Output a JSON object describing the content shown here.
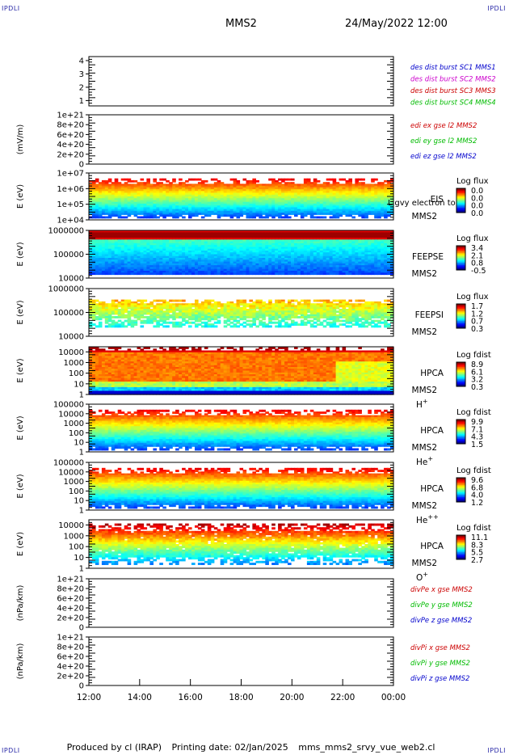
{
  "corners": {
    "top_left": "IPDLI",
    "top_right": "IPDLI",
    "bottom_left": "IPDLI",
    "bottom_right": "IPDLI"
  },
  "header": {
    "spacecraft": "MMS2",
    "datetime": "24/May/2022 12:00"
  },
  "footer": {
    "producer": "Produced by cl (IRAP)",
    "print_date": "Printing date: 02/Jan/2025",
    "script": "mms_mms2_srvy_vue_web2.cl"
  },
  "colors": {
    "mms1": "#0000cc",
    "mms2": "#cc00cc",
    "mms3": "#cc0000",
    "mms4": "#00bb00",
    "x": "#cc0000",
    "y": "#00bb00",
    "z": "#0000cc",
    "fill": "#ffffff",
    "ink": "#000000"
  },
  "chart_data": {
    "type": "stacked-timeseries",
    "time_axis": {
      "range": [
        "12:00",
        "00:00"
      ],
      "ticks": [
        "12:00",
        "14:00",
        "16:00",
        "18:00",
        "20:00",
        "22:00",
        "00:00"
      ]
    },
    "panels": [
      {
        "id": "burst",
        "type": "line",
        "ylabel": "",
        "yticks": [
          "4",
          "3",
          "2",
          "1"
        ],
        "ylim": [
          0.6,
          4.3
        ],
        "legend": [
          "des dist burst SC1 MMS1",
          "des dist burst SC2 MMS2",
          "des dist burst SC3 MMS3",
          "des dist burst SC4 MMS4"
        ],
        "legend_colors": [
          "mms1",
          "mms2",
          "mms3",
          "mms4"
        ]
      },
      {
        "id": "edi",
        "type": "line",
        "ylabel": "(mV/m)",
        "yticks": [
          "1e+21",
          "8e+20",
          "6e+20",
          "4e+20",
          "2e+20",
          "0"
        ],
        "ylim": [
          0,
          1e+21
        ],
        "zero_line": true,
        "legend": [
          "edi ex gse l2 MMS2",
          "edi ey gse l2 MMS2",
          "edi ez gse l2 MMS2"
        ],
        "legend_colors": [
          "x",
          "y",
          "z"
        ]
      },
      {
        "id": "eis",
        "type": "heatmap",
        "ylabel": "E (eV)",
        "log": true,
        "yticks": [
          "1e+07",
          "1e+06",
          "1e+05",
          "1e+04"
        ],
        "ylim": [
          10000,
          10000000
        ],
        "instrument": "EIS",
        "spacecraft": "MMS2",
        "overlay_label": "Ligvy electron to",
        "colorbar": {
          "title": "Log flux",
          "ticks": [
            "0.0",
            "0.0",
            "0.0",
            "0.0"
          ]
        }
      },
      {
        "id": "feepse",
        "type": "heatmap",
        "ylabel": "E (eV)",
        "log": true,
        "yticks": [
          "1000000",
          "100000",
          "10000"
        ],
        "ylim": [
          10000,
          1000000
        ],
        "instrument": "FEEPSE",
        "spacecraft": "MMS2",
        "colorbar": {
          "title": "Log flux",
          "ticks": [
            "3.4",
            "2.1",
            "0.8",
            "-0.5"
          ]
        }
      },
      {
        "id": "feepsi",
        "type": "heatmap",
        "ylabel": "E (eV)",
        "log": true,
        "yticks": [
          "1000000",
          "100000",
          "10000"
        ],
        "ylim": [
          10000,
          1000000
        ],
        "instrument": "FEEPSI",
        "spacecraft": "MMS2",
        "colorbar": {
          "title": "Log flux",
          "ticks": [
            "1.7",
            "1.2",
            "0.7",
            "0.3"
          ]
        }
      },
      {
        "id": "hpca_h",
        "type": "heatmap",
        "ylabel": "E (eV)",
        "log": true,
        "yticks": [
          "10000",
          "1000",
          "100",
          "10",
          "1"
        ],
        "ylim": [
          1,
          30000
        ],
        "instrument": "HPCA",
        "spacecraft": "MMS2",
        "species": "H",
        "charge": "+",
        "colorbar": {
          "title": "Log fdist",
          "ticks": [
            "8.9",
            "6.1",
            "3.2",
            "0.3"
          ]
        }
      },
      {
        "id": "hpca_he",
        "type": "heatmap",
        "ylabel": "E (eV)",
        "log": true,
        "yticks": [
          "100000",
          "10000",
          "1000",
          "100",
          "10",
          "1"
        ],
        "ylim": [
          1,
          100000
        ],
        "instrument": "HPCA",
        "spacecraft": "MMS2",
        "species": "He",
        "charge": "+",
        "colorbar": {
          "title": "Log fdist",
          "ticks": [
            "9.9",
            "7.1",
            "4.3",
            "1.5"
          ]
        }
      },
      {
        "id": "hpca_hepp",
        "type": "heatmap",
        "ylabel": "E (eV)",
        "log": true,
        "yticks": [
          "100000",
          "10000",
          "1000",
          "100",
          "10",
          "1"
        ],
        "ylim": [
          1,
          100000
        ],
        "instrument": "HPCA",
        "spacecraft": "MMS2",
        "species": "He",
        "charge": "++",
        "colorbar": {
          "title": "Log fdist",
          "ticks": [
            "9.6",
            "6.8",
            "4.0",
            "1.2"
          ]
        }
      },
      {
        "id": "hpca_o",
        "type": "heatmap",
        "ylabel": "E (eV)",
        "log": true,
        "yticks": [
          "10000",
          "1000",
          "100",
          "10",
          "1"
        ],
        "ylim": [
          1,
          30000
        ],
        "instrument": "HPCA",
        "spacecraft": "MMS2",
        "species": "O",
        "charge": "+",
        "colorbar": {
          "title": "Log fdist",
          "ticks": [
            "11.1",
            "8.3",
            "5.5",
            "2.7"
          ]
        }
      },
      {
        "id": "dpe",
        "type": "line",
        "ylabel": "(nPa/km)",
        "yticks": [
          "1e+21",
          "8e+20",
          "6e+20",
          "4e+20",
          "2e+20",
          "0"
        ],
        "ylim": [
          0,
          1e+21
        ],
        "zero_line": true,
        "legend": [
          "divPe x gse MMS2",
          "divPe y gse MMS2",
          "divPe z gse MMS2"
        ],
        "legend_colors": [
          "x",
          "y",
          "z"
        ]
      },
      {
        "id": "dpi",
        "type": "line",
        "ylabel": "(nPa/km)",
        "yticks": [
          "1e+21",
          "8e+20",
          "6e+20",
          "4e+20",
          "2e+20",
          "0"
        ],
        "ylim": [
          0,
          1e+21
        ],
        "zero_line": true,
        "legend": [
          "divPi x gse MMS2",
          "divPi y gse MMS2",
          "divPi z gse MMS2"
        ],
        "legend_colors": [
          "x",
          "y",
          "z"
        ]
      }
    ]
  }
}
